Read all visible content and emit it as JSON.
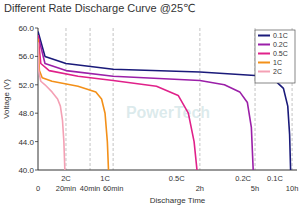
{
  "chart_data": {
    "type": "line",
    "title": "Different Rate Discharge Curve @25℃",
    "y_label": "Voltage (V)",
    "x_label": "Discharge Time",
    "watermark": "PowerTech",
    "xlim": [
      0,
      630
    ],
    "xticks": [
      0,
      {
        "value": 20,
        "label": "20min"
      },
      {
        "value": 40,
        "label": "40min"
      },
      {
        "value": 60,
        "label": "60min"
      },
      {
        "value": 120,
        "label": "2h"
      },
      {
        "value": 300,
        "label": "5h"
      },
      {
        "value": 600,
        "label": "10h"
      }
    ],
    "ylim": [
      40,
      60
    ],
    "yticks": [
      {
        "value": 40,
        "label": "40.0"
      },
      {
        "value": 44,
        "label": "44.0"
      },
      {
        "value": 48,
        "label": "48.0"
      },
      {
        "value": 52,
        "label": "52.0"
      },
      {
        "value": 56,
        "label": "56.0"
      },
      {
        "value": 60,
        "label": "60.0"
      }
    ],
    "grid": true,
    "legend": "top-right",
    "annotations": [
      {
        "text": "2C",
        "x": 20
      },
      {
        "text": "1C",
        "x": 53
      },
      {
        "text": "0.5C",
        "x": 104
      },
      {
        "text": "0.2C",
        "x": 261
      },
      {
        "text": "0.1C",
        "x": 462
      }
    ],
    "series": [
      {
        "name": "0.1C",
        "color": "#1a1a7a",
        "x": [
          0,
          5,
          20,
          60,
          120,
          300,
          450,
          530,
          565,
          580,
          588
        ],
        "values": [
          59.5,
          56,
          55,
          54.2,
          53.8,
          53.3,
          52.8,
          51.5,
          49,
          45,
          40
        ]
      },
      {
        "name": "0.2C",
        "color": "#9b1fa8",
        "x": [
          0,
          5,
          20,
          60,
          120,
          200,
          250,
          275,
          288,
          294
        ],
        "values": [
          59,
          55,
          54,
          53.2,
          52.6,
          52,
          51,
          49.5,
          46,
          40
        ]
      },
      {
        "name": "0.5C",
        "color": "#e0218a",
        "x": [
          0,
          2,
          8,
          30,
          60,
          90,
          105,
          112,
          116,
          118
        ],
        "values": [
          59,
          55,
          54,
          53.2,
          52.6,
          51.8,
          50.5,
          48,
          44,
          40
        ]
      },
      {
        "name": "1C",
        "color": "#f39019",
        "x": [
          0,
          1,
          3,
          10,
          30,
          45,
          50,
          53,
          55,
          56
        ],
        "values": [
          58.5,
          54,
          53,
          52.5,
          51.8,
          51,
          50,
          48,
          44,
          40
        ]
      },
      {
        "name": "2C",
        "color": "#f4a0b4",
        "x": [
          0,
          0.5,
          2,
          5,
          10,
          14,
          16,
          17.5,
          18.5,
          19.2
        ],
        "values": [
          58,
          54,
          52.5,
          52,
          51,
          50,
          49,
          47,
          44,
          40
        ]
      }
    ]
  }
}
